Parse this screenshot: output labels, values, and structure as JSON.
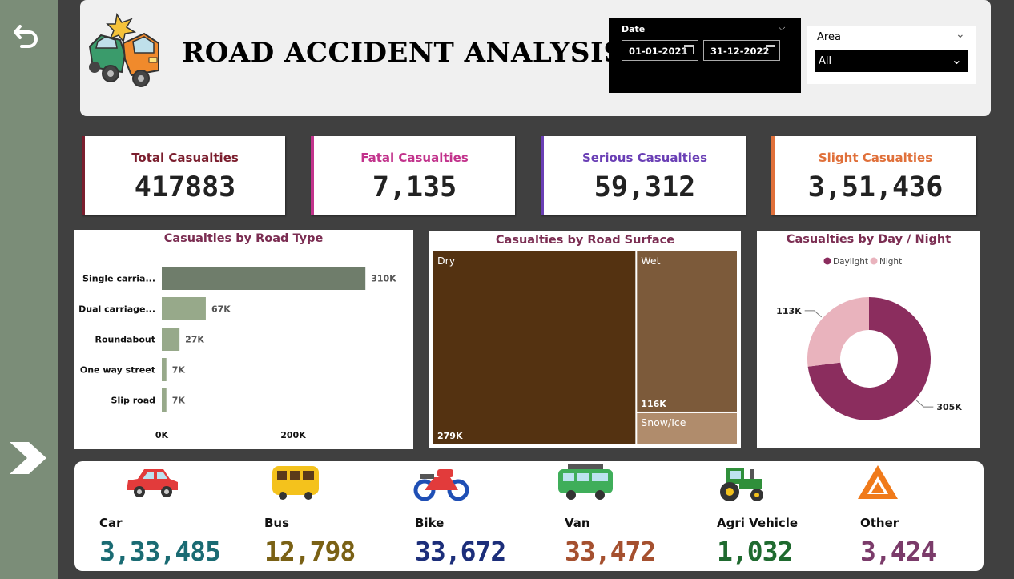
{
  "header": {
    "title": "ROAD ACCIDENT ANALYSIS",
    "date_slicer": {
      "label": "Date",
      "start": "01-01-2021",
      "end": "31-12-2022"
    },
    "area_slicer": {
      "label": "Area",
      "selected": "All"
    }
  },
  "sidebar": {
    "back_icon": "undo-arrow-icon",
    "next_icon": "chevron-right-icon"
  },
  "kpis": [
    {
      "label": "Total Casualties",
      "value": "417883",
      "color": "#7b1e2e"
    },
    {
      "label": "Fatal Casualties",
      "value": "7,135",
      "color": "#c2338c"
    },
    {
      "label": "Serious Casualties",
      "value": "59,312",
      "color": "#6a3fb5"
    },
    {
      "label": "Slight Casualties",
      "value": "3,51,436",
      "color": "#e0703a"
    }
  ],
  "chart_data": [
    {
      "type": "bar",
      "orientation": "horizontal",
      "title": "Casualties by Road Type",
      "categories": [
        "Single carria...",
        "Dual carriage...",
        "Roundabout",
        "One way street",
        "Slip road"
      ],
      "values": [
        310000,
        67000,
        27000,
        7000,
        7000
      ],
      "data_labels": [
        "310K",
        "67K",
        "27K",
        "7K",
        "7K"
      ],
      "x_ticks": [
        "0K",
        "200K"
      ],
      "xlim": [
        0,
        400000
      ],
      "colors": {
        "highlight": "#6f7d6b",
        "bar": "#97a98a"
      }
    },
    {
      "type": "treemap",
      "title": "Casualties by Road Surface",
      "categories": [
        "Dry",
        "Wet",
        "Snow/Ice"
      ],
      "values": [
        279000,
        116000,
        23000
      ],
      "data_labels": [
        "279K",
        "116K",
        ""
      ],
      "colors": [
        "#543211",
        "#7c5a3a",
        "#b08c6c"
      ]
    },
    {
      "type": "pie",
      "subtype": "donut",
      "title": "Casualties by Day / Night",
      "categories": [
        "Daylight",
        "Night"
      ],
      "values": [
        305000,
        113000
      ],
      "data_labels": [
        "305K",
        "113K"
      ],
      "legend": "top-center",
      "colors": [
        "#8b2d5e",
        "#e9b3bd"
      ]
    }
  ],
  "vehicles": [
    {
      "label": "Car",
      "value": "3,33,485",
      "color": "#1a6b73",
      "icon": "car-icon"
    },
    {
      "label": "Bus",
      "value": "12,798",
      "color": "#7a6115",
      "icon": "bus-icon"
    },
    {
      "label": "Bike",
      "value": "33,672",
      "color": "#1c2e7a",
      "icon": "motorbike-icon"
    },
    {
      "label": "Van",
      "value": "33,472",
      "color": "#a5502f",
      "icon": "van-icon"
    },
    {
      "label": "Agri Vehicle",
      "value": "1,032",
      "color": "#1f6a2f",
      "icon": "tractor-icon"
    },
    {
      "label": "Other",
      "value": "3,424",
      "color": "#7b3b6a",
      "icon": "warning-triangle-icon"
    }
  ]
}
